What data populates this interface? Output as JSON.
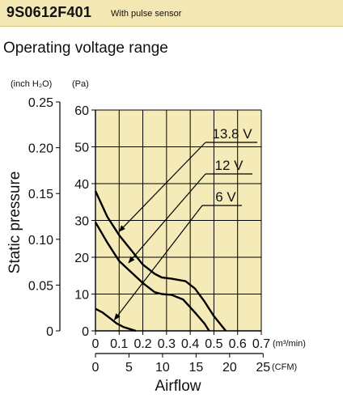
{
  "header": {
    "model": "9S0612F401",
    "subtitle": "With pulse sensor"
  },
  "section_title": "Operating voltage range",
  "chart_data": {
    "type": "line",
    "title": "",
    "xlabel": "Airflow",
    "ylabel": "Static pressure",
    "unit_labels": {
      "y_inch": "(inch H₂O)",
      "y_pa": "(Pa)",
      "x_m3": "(m³/min)",
      "x_cfm": "(CFM)"
    },
    "xlim": [
      0,
      0.7
    ],
    "ylim": [
      0,
      60
    ],
    "x_ticks_m3min": [
      "0",
      "0.1",
      "0.2",
      "0.3",
      "0.4",
      "0.5",
      "0.6",
      "0.7"
    ],
    "x_ticks_cfm": [
      "0",
      "5",
      "10",
      "15",
      "20",
      "25"
    ],
    "y_ticks_pa": [
      "0",
      "10",
      "20",
      "30",
      "40",
      "50",
      "60"
    ],
    "y_ticks_inch": [
      "0",
      "0.05",
      "0.10",
      "0.15",
      "0.20",
      "0.25"
    ],
    "grid": true,
    "plot_background": "#f5ebb8",
    "series": [
      {
        "name": "13.8 V",
        "color": "#000000",
        "points": [
          [
            0,
            38
          ],
          [
            0.05,
            31
          ],
          [
            0.1,
            26
          ],
          [
            0.15,
            22
          ],
          [
            0.2,
            18
          ],
          [
            0.25,
            15.5
          ],
          [
            0.28,
            14.5
          ],
          [
            0.32,
            14.2
          ],
          [
            0.38,
            13.5
          ],
          [
            0.42,
            11.5
          ],
          [
            0.46,
            8
          ],
          [
            0.5,
            4
          ],
          [
            0.55,
            0
          ]
        ]
      },
      {
        "name": "12 V",
        "color": "#000000",
        "points": [
          [
            0,
            29.5
          ],
          [
            0.05,
            24
          ],
          [
            0.1,
            19
          ],
          [
            0.15,
            16
          ],
          [
            0.2,
            13
          ],
          [
            0.25,
            10.5
          ],
          [
            0.28,
            10
          ],
          [
            0.32,
            9.8
          ],
          [
            0.37,
            8.5
          ],
          [
            0.42,
            5
          ],
          [
            0.46,
            2
          ],
          [
            0.48,
            0
          ]
        ]
      },
      {
        "name": "6 V",
        "color": "#000000",
        "points": [
          [
            0,
            6
          ],
          [
            0.03,
            5
          ],
          [
            0.06,
            3.5
          ],
          [
            0.09,
            2
          ],
          [
            0.12,
            1
          ],
          [
            0.15,
            0.4
          ],
          [
            0.17,
            0
          ]
        ]
      }
    ],
    "annotations": [
      {
        "label": "13.8 V",
        "target": [
          0.1,
          27
        ]
      },
      {
        "label": "12 V",
        "target": [
          0.14,
          18.5
        ]
      },
      {
        "label": "6 V",
        "target": [
          0.08,
          3
        ]
      }
    ]
  }
}
